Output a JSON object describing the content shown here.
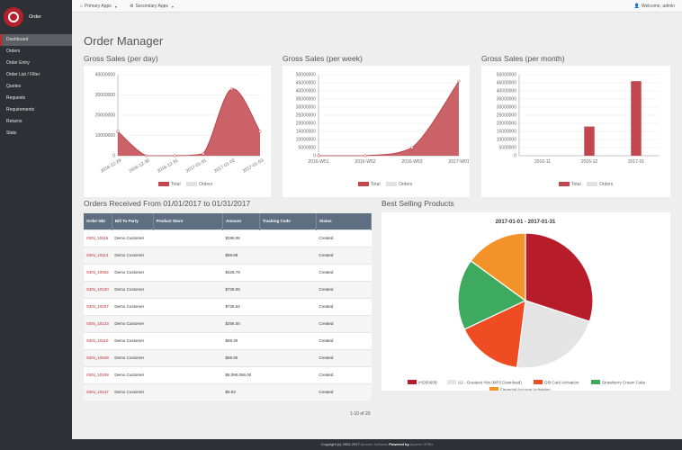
{
  "brand": {
    "name": "Order"
  },
  "topbar": {
    "primary_apps": "Primary Apps",
    "secondary_apps": "Secondary Apps",
    "user": "Welcome, admin"
  },
  "sidebar": {
    "items": [
      {
        "label": "Dashboard",
        "active": true
      },
      {
        "label": "Orders"
      },
      {
        "label": "Order Entry"
      },
      {
        "label": "Order List / Filter"
      },
      {
        "label": "Quotes"
      },
      {
        "label": "Requests"
      },
      {
        "label": "Requirements"
      },
      {
        "label": "Returns"
      },
      {
        "label": "Stats"
      }
    ]
  },
  "page": {
    "title": "Order Manager",
    "orders_section_title": "Orders Received From 01/01/2017 to 01/31/2017",
    "best_selling_title": "Best Selling Products",
    "pagination": "1-10 of 20"
  },
  "colors": {
    "accent": "#c2272d",
    "series_total": "#c1464e",
    "series_orders": "#e0e0e0"
  },
  "chart_data": [
    {
      "type": "area",
      "title": "Gross Sales (per day)",
      "categories": [
        "2016-12-29",
        "2016-12-30",
        "2016-12-31",
        "2017-01-01",
        "2017-01-02",
        "2017-01-03"
      ],
      "series": [
        {
          "name": "Total",
          "values": [
            12000000,
            0,
            0,
            1000000,
            33000000,
            12000000
          ]
        },
        {
          "name": "Orders",
          "values": [
            0,
            0,
            0,
            0,
            0,
            0
          ]
        }
      ],
      "y_ticks": [
        "0",
        "10000000",
        "20000000",
        "30000000",
        "40000000"
      ],
      "ylim": [
        0,
        40000000
      ]
    },
    {
      "type": "line",
      "title": "Gross Sales (per week)",
      "categories": [
        "2016-W51",
        "2016-W52",
        "2016-W53",
        "2017-W01"
      ],
      "series": [
        {
          "name": "Total",
          "values": [
            0,
            0,
            5000000,
            46000000
          ]
        },
        {
          "name": "Orders",
          "values": [
            0,
            0,
            0,
            0
          ]
        }
      ],
      "y_ticks": [
        "0",
        "5000000",
        "10000000",
        "15000000",
        "20000000",
        "25000000",
        "30000000",
        "35000000",
        "40000000",
        "45000000",
        "50000000"
      ],
      "ylim": [
        0,
        50000000
      ]
    },
    {
      "type": "bar",
      "title": "Gross Sales (per month)",
      "categories": [
        "2016-11",
        "2016-12",
        "2017-01"
      ],
      "series": [
        {
          "name": "Total",
          "values": [
            0,
            18000000,
            46000000
          ]
        },
        {
          "name": "Orders",
          "values": [
            0,
            0,
            0
          ]
        }
      ],
      "y_ticks": [
        "0",
        "5000000",
        "10000000",
        "15000000",
        "20000000",
        "25000000",
        "30000000",
        "35000000",
        "40000000",
        "45000000",
        "50000000"
      ],
      "ylim": [
        0,
        50000000
      ]
    },
    {
      "type": "pie",
      "title": "2017-01-01 - 2017-01-31",
      "slices": [
        {
          "label": "IHD5060B",
          "value": 30,
          "color": "#b71c2b"
        },
        {
          "label": "U2 - Greatest Hits (MP3 Download)",
          "value": 22,
          "color": "#e4e4e4"
        },
        {
          "label": "Gift Card Activation",
          "value": 16,
          "color": "#f04c24"
        },
        {
          "label": "Strawberry Cream Cake",
          "value": 17,
          "color": "#3daa5f"
        },
        {
          "label": "Financial Account Activation",
          "value": 15,
          "color": "#f4922a"
        }
      ]
    }
  ],
  "orders_table": {
    "headers": [
      "Order Nbr",
      "Bill To Party",
      "Product Store",
      "Amount",
      "Tracking Code",
      "Status"
    ],
    "rows": [
      {
        "order": "GEN_10115",
        "bill_to": "Demo Customer",
        "store": "",
        "amount": "$298.06",
        "tracking": "",
        "status": "Created"
      },
      {
        "order": "GEN_10114",
        "bill_to": "Demo Customer",
        "store": "",
        "amount": "$89.88",
        "tracking": "",
        "status": "Created"
      },
      {
        "order": "GEN_10002",
        "bill_to": "Demo Customer",
        "store": "",
        "amount": "$428.79",
        "tracking": "",
        "status": "Created"
      },
      {
        "order": "GEN_10120",
        "bill_to": "Demo Customer",
        "store": "",
        "amount": "$728.00",
        "tracking": "",
        "status": "Created"
      },
      {
        "order": "GEN_10207",
        "bill_to": "Demo Customer",
        "store": "",
        "amount": "$728.64",
        "tracking": "",
        "status": "Created"
      },
      {
        "order": "GEN_10133",
        "bill_to": "Demo Customer",
        "store": "",
        "amount": "$256.00",
        "tracking": "",
        "status": "Created"
      },
      {
        "order": "GEN_10110",
        "bill_to": "Demo Customer",
        "store": "",
        "amount": "$59.30",
        "tracking": "",
        "status": "Created"
      },
      {
        "order": "GEN_10548",
        "bill_to": "Demo Customer",
        "store": "",
        "amount": "$69.90",
        "tracking": "",
        "status": "Created"
      },
      {
        "order": "GEN_10109",
        "bill_to": "Demo Customer",
        "store": "",
        "amount": "$8,090,056.00",
        "tracking": "",
        "status": "Created"
      },
      {
        "order": "GEN_10137",
        "bill_to": "Demo Customer",
        "store": "",
        "amount": "$9.83",
        "tracking": "",
        "status": "Created"
      }
    ]
  },
  "footer": {
    "copyright": "Copyright (c) 2001-2017",
    "project": "Apache Software",
    "powered_label": "Powered by",
    "powered_by": "Apache OFBiz"
  }
}
